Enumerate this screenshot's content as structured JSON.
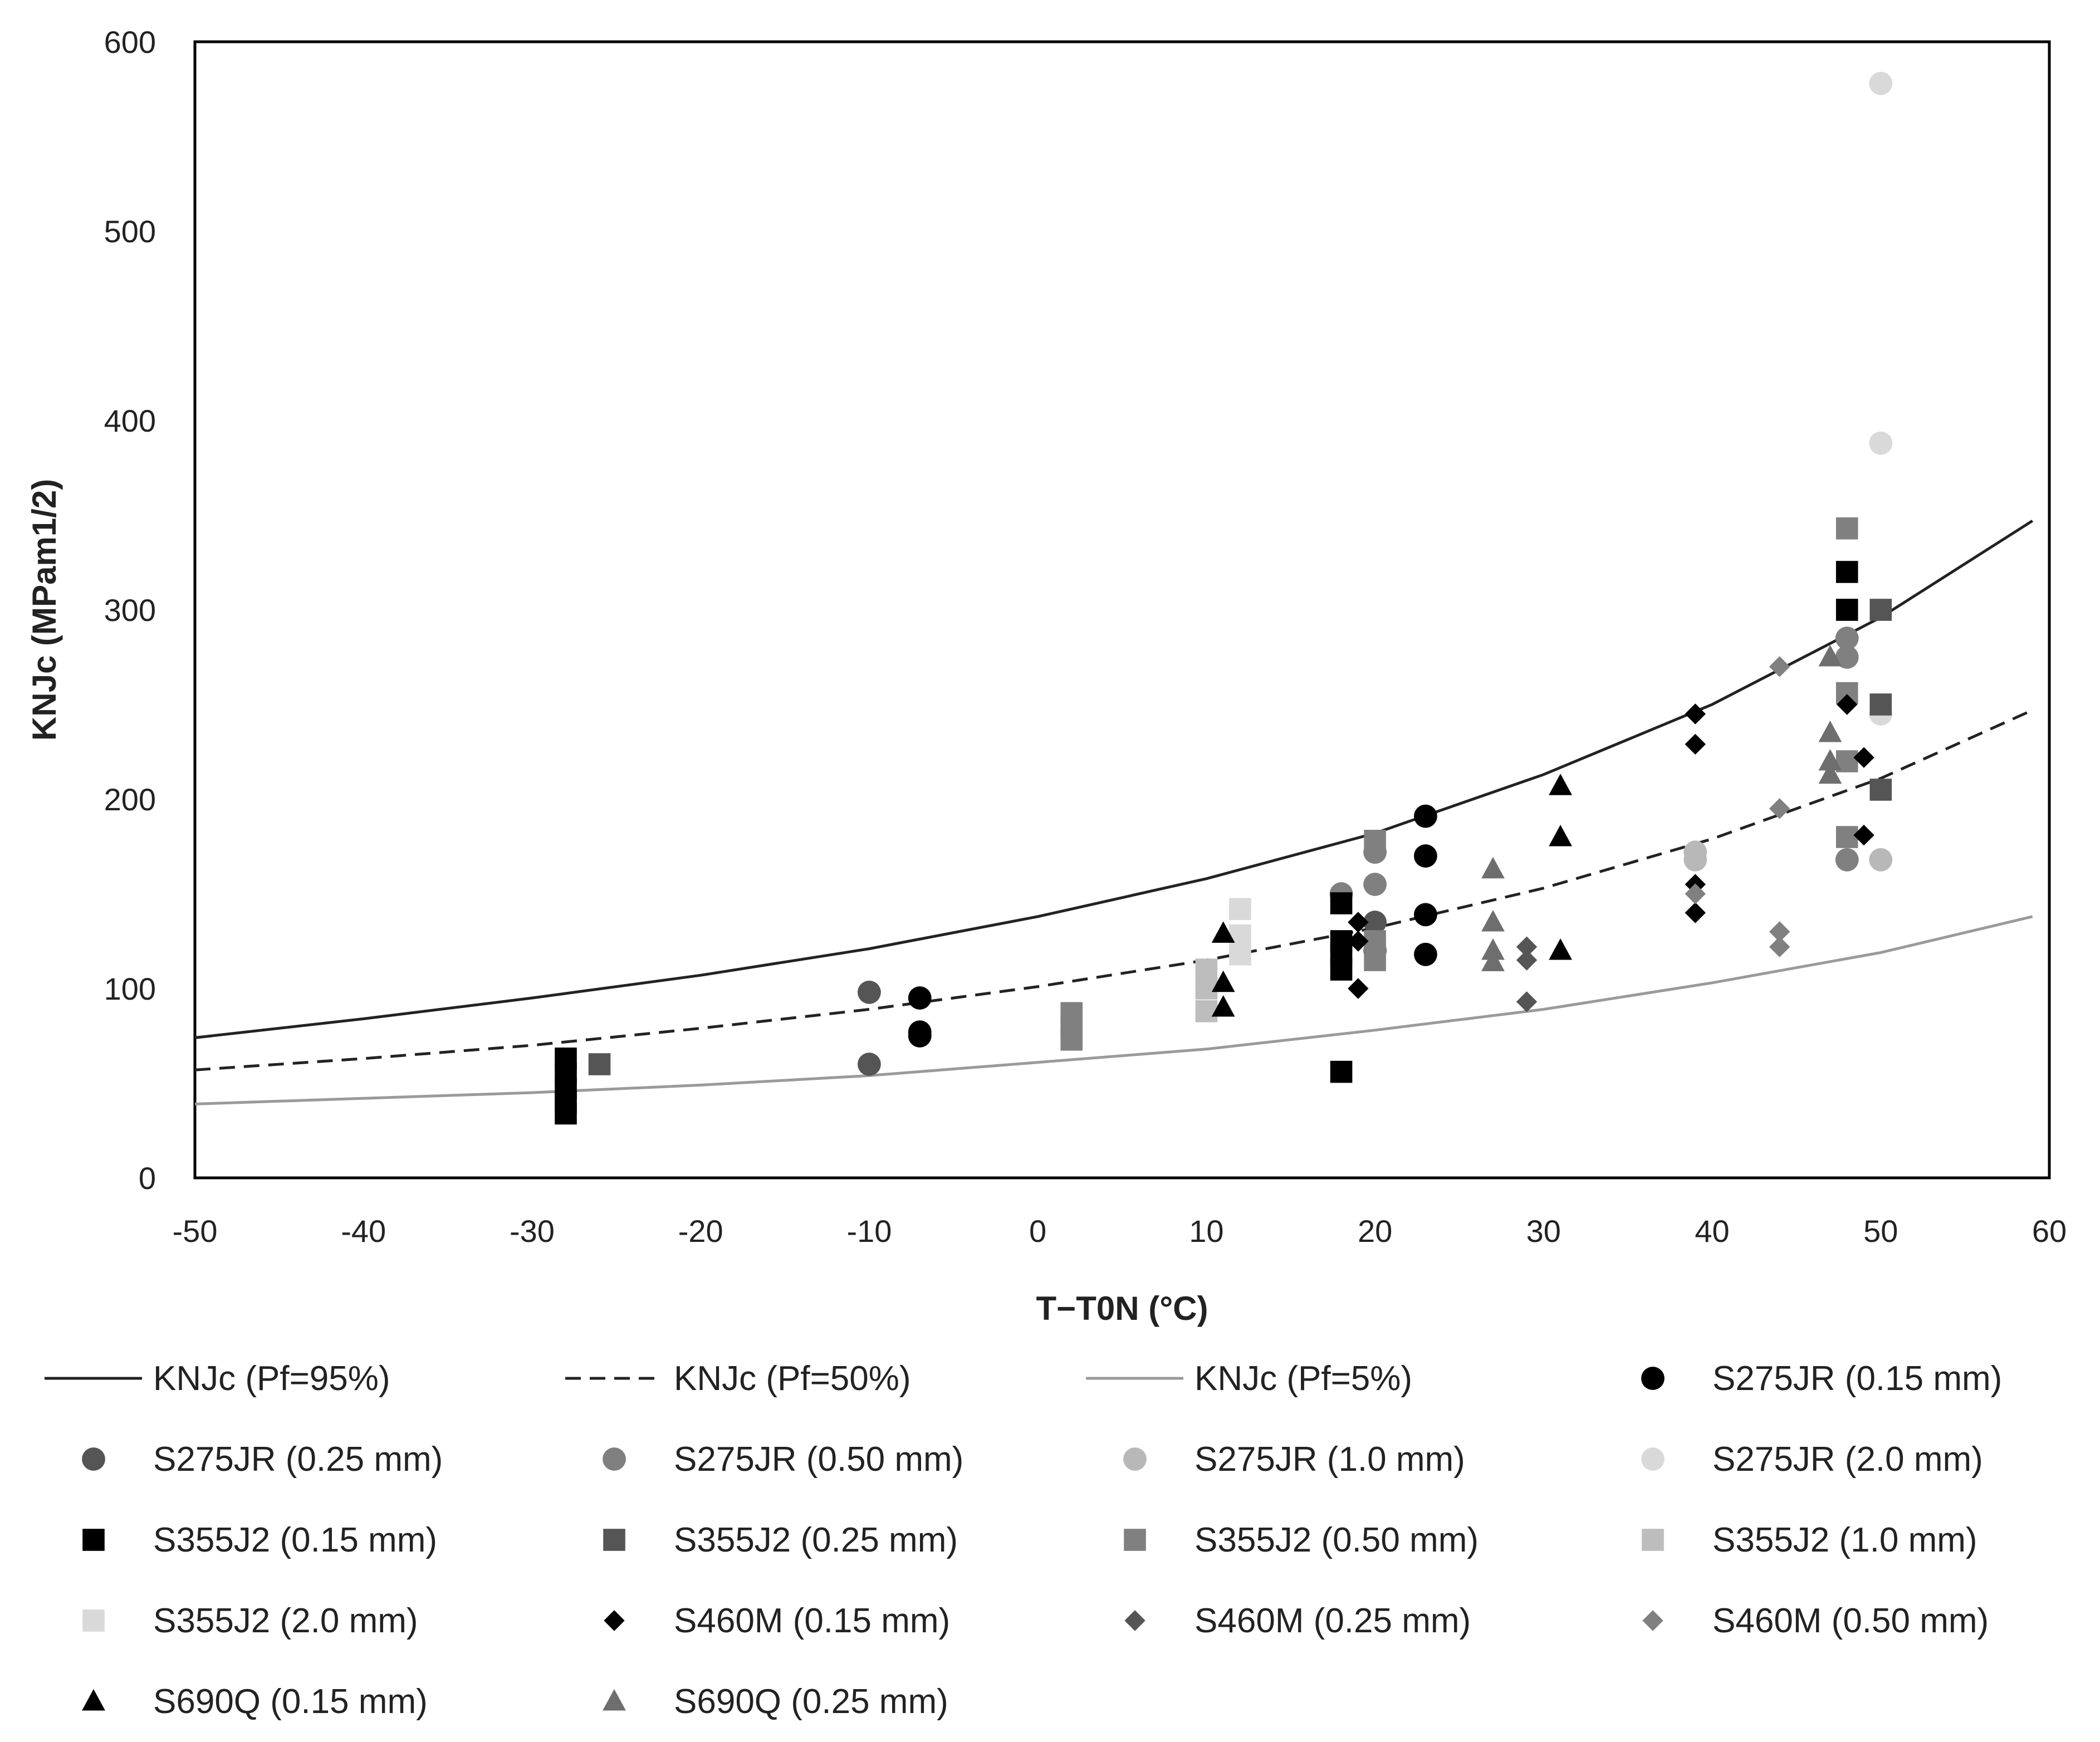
{
  "chart_data": {
    "type": "scatter",
    "title": "",
    "xlabel": "T−T0N (°C)",
    "ylabel": "KNJc (MPam1/2)",
    "xlim": [
      -50,
      60
    ],
    "ylim": [
      0,
      600
    ],
    "x_ticks": [
      "-50",
      "-40",
      "-30",
      "-20",
      "-10",
      "0",
      "10",
      "20",
      "30",
      "40",
      "50",
      "60"
    ],
    "y_ticks": [
      "0",
      "100",
      "200",
      "300",
      "400",
      "500",
      "600"
    ],
    "legend_position": "bottom",
    "curves": [
      {
        "name": "KNJc (Pf=95%)",
        "style": "solid",
        "color": "#222222",
        "points": [
          [
            -50,
            74
          ],
          [
            -40,
            84
          ],
          [
            -30,
            95
          ],
          [
            -20,
            107
          ],
          [
            -10,
            121
          ],
          [
            0,
            138
          ],
          [
            10,
            158
          ],
          [
            20,
            182
          ],
          [
            30,
            213
          ],
          [
            40,
            250
          ],
          [
            50,
            296
          ],
          [
            59,
            347
          ]
        ]
      },
      {
        "name": "KNJc (Pf=50%)",
        "style": "dashed",
        "color": "#222222",
        "points": [
          [
            -50,
            57
          ],
          [
            -40,
            63
          ],
          [
            -30,
            70
          ],
          [
            -20,
            79
          ],
          [
            -10,
            89
          ],
          [
            0,
            101
          ],
          [
            10,
            115
          ],
          [
            20,
            132
          ],
          [
            30,
            153
          ],
          [
            40,
            179
          ],
          [
            50,
            211
          ],
          [
            59,
            247
          ]
        ]
      },
      {
        "name": "KNJc (Pf=5%)",
        "style": "solid",
        "color": "#9a9a9a",
        "points": [
          [
            -50,
            39
          ],
          [
            -40,
            42
          ],
          [
            -30,
            45
          ],
          [
            -20,
            49
          ],
          [
            -10,
            54
          ],
          [
            0,
            61
          ],
          [
            10,
            68
          ],
          [
            20,
            78
          ],
          [
            30,
            89
          ],
          [
            40,
            103
          ],
          [
            50,
            119
          ],
          [
            59,
            138
          ]
        ]
      }
    ],
    "series": [
      {
        "name": "S275JR (0.15 mm)",
        "marker": "circle",
        "color": "#000000",
        "points": [
          [
            -7,
            95
          ],
          [
            -7,
            77
          ],
          [
            -7,
            75
          ],
          [
            23,
            191
          ],
          [
            23,
            170
          ],
          [
            23,
            139
          ],
          [
            23,
            118
          ]
        ]
      },
      {
        "name": "S275JR (0.25 mm)",
        "marker": "circle",
        "color": "#555555",
        "points": [
          [
            -10,
            98
          ],
          [
            -10,
            60
          ],
          [
            20,
            135
          ],
          [
            20,
            120
          ]
        ]
      },
      {
        "name": "S275JR (0.50 mm)",
        "marker": "circle",
        "color": "#808080",
        "points": [
          [
            18,
            150
          ],
          [
            20,
            155
          ],
          [
            20,
            172
          ],
          [
            48,
            285
          ],
          [
            48,
            275
          ],
          [
            48,
            168
          ]
        ]
      },
      {
        "name": "S275JR (1.0 mm)",
        "marker": "circle",
        "color": "#b8b8b8",
        "points": [
          [
            39,
            172
          ],
          [
            39,
            168
          ],
          [
            50,
            168
          ]
        ]
      },
      {
        "name": "S275JR (2.0 mm)",
        "marker": "circle",
        "color": "#d9d9d9",
        "points": [
          [
            50,
            578
          ],
          [
            50,
            388
          ],
          [
            50,
            245
          ]
        ]
      },
      {
        "name": "S355J2 (0.15 mm)",
        "marker": "square",
        "color": "#000000",
        "points": [
          [
            -28,
            63
          ],
          [
            -28,
            55
          ],
          [
            -28,
            47
          ],
          [
            -28,
            40
          ],
          [
            -28,
            34
          ],
          [
            18,
            145
          ],
          [
            18,
            125
          ],
          [
            18,
            118
          ],
          [
            18,
            110
          ],
          [
            18,
            56
          ],
          [
            48,
            320
          ],
          [
            48,
            300
          ]
        ]
      },
      {
        "name": "S355J2 (0.25 mm)",
        "marker": "square",
        "color": "#555555",
        "points": [
          [
            -26,
            60
          ],
          [
            50,
            300
          ],
          [
            50,
            250
          ],
          [
            50,
            205
          ]
        ]
      },
      {
        "name": "S355J2 (0.50 mm)",
        "marker": "square",
        "color": "#808080",
        "points": [
          [
            2,
            87
          ],
          [
            2,
            80
          ],
          [
            2,
            73
          ],
          [
            20,
            178
          ],
          [
            20,
            125
          ],
          [
            20,
            115
          ],
          [
            48,
            343
          ],
          [
            48,
            256
          ],
          [
            48,
            220
          ],
          [
            48,
            180
          ]
        ]
      },
      {
        "name": "S355J2 (1.0 mm)",
        "marker": "square",
        "color": "#bdbdbd",
        "points": [
          [
            10,
            110
          ],
          [
            10,
            100
          ],
          [
            10,
            88
          ]
        ]
      },
      {
        "name": "S355J2 (2.0 mm)",
        "marker": "square",
        "color": "#d9d9d9",
        "points": [
          [
            12,
            142
          ],
          [
            12,
            128
          ],
          [
            12,
            118
          ]
        ]
      },
      {
        "name": "S460M (0.15 mm)",
        "marker": "diamond",
        "color": "#000000",
        "points": [
          [
            19,
            135
          ],
          [
            19,
            125
          ],
          [
            19,
            100
          ],
          [
            39,
            245
          ],
          [
            39,
            229
          ],
          [
            39,
            155
          ],
          [
            39,
            140
          ],
          [
            48,
            250
          ],
          [
            49,
            222
          ],
          [
            49,
            181
          ]
        ]
      },
      {
        "name": "S460M (0.25 mm)",
        "marker": "diamond",
        "color": "#555555",
        "points": [
          [
            29,
            122
          ],
          [
            29,
            115
          ],
          [
            29,
            93
          ]
        ]
      },
      {
        "name": "S460M (0.50 mm)",
        "marker": "diamond",
        "color": "#808080",
        "points": [
          [
            44,
            270
          ],
          [
            44,
            195
          ],
          [
            44,
            130
          ],
          [
            44,
            122
          ],
          [
            39,
            150
          ]
        ]
      },
      {
        "name": "S690Q (0.15 mm)",
        "marker": "triangle",
        "color": "#000000",
        "points": [
          [
            11,
            129
          ],
          [
            11,
            103
          ],
          [
            11,
            90
          ],
          [
            31,
            207
          ],
          [
            31,
            180
          ],
          [
            31,
            120
          ]
        ]
      },
      {
        "name": "S690Q (0.25 mm)",
        "marker": "triangle",
        "color": "#6e6e6e",
        "points": [
          [
            27,
            163
          ],
          [
            27,
            135
          ],
          [
            27,
            120
          ],
          [
            27,
            114
          ],
          [
            47,
            275
          ],
          [
            47,
            235
          ],
          [
            47,
            220
          ],
          [
            47,
            213
          ]
        ]
      }
    ]
  }
}
